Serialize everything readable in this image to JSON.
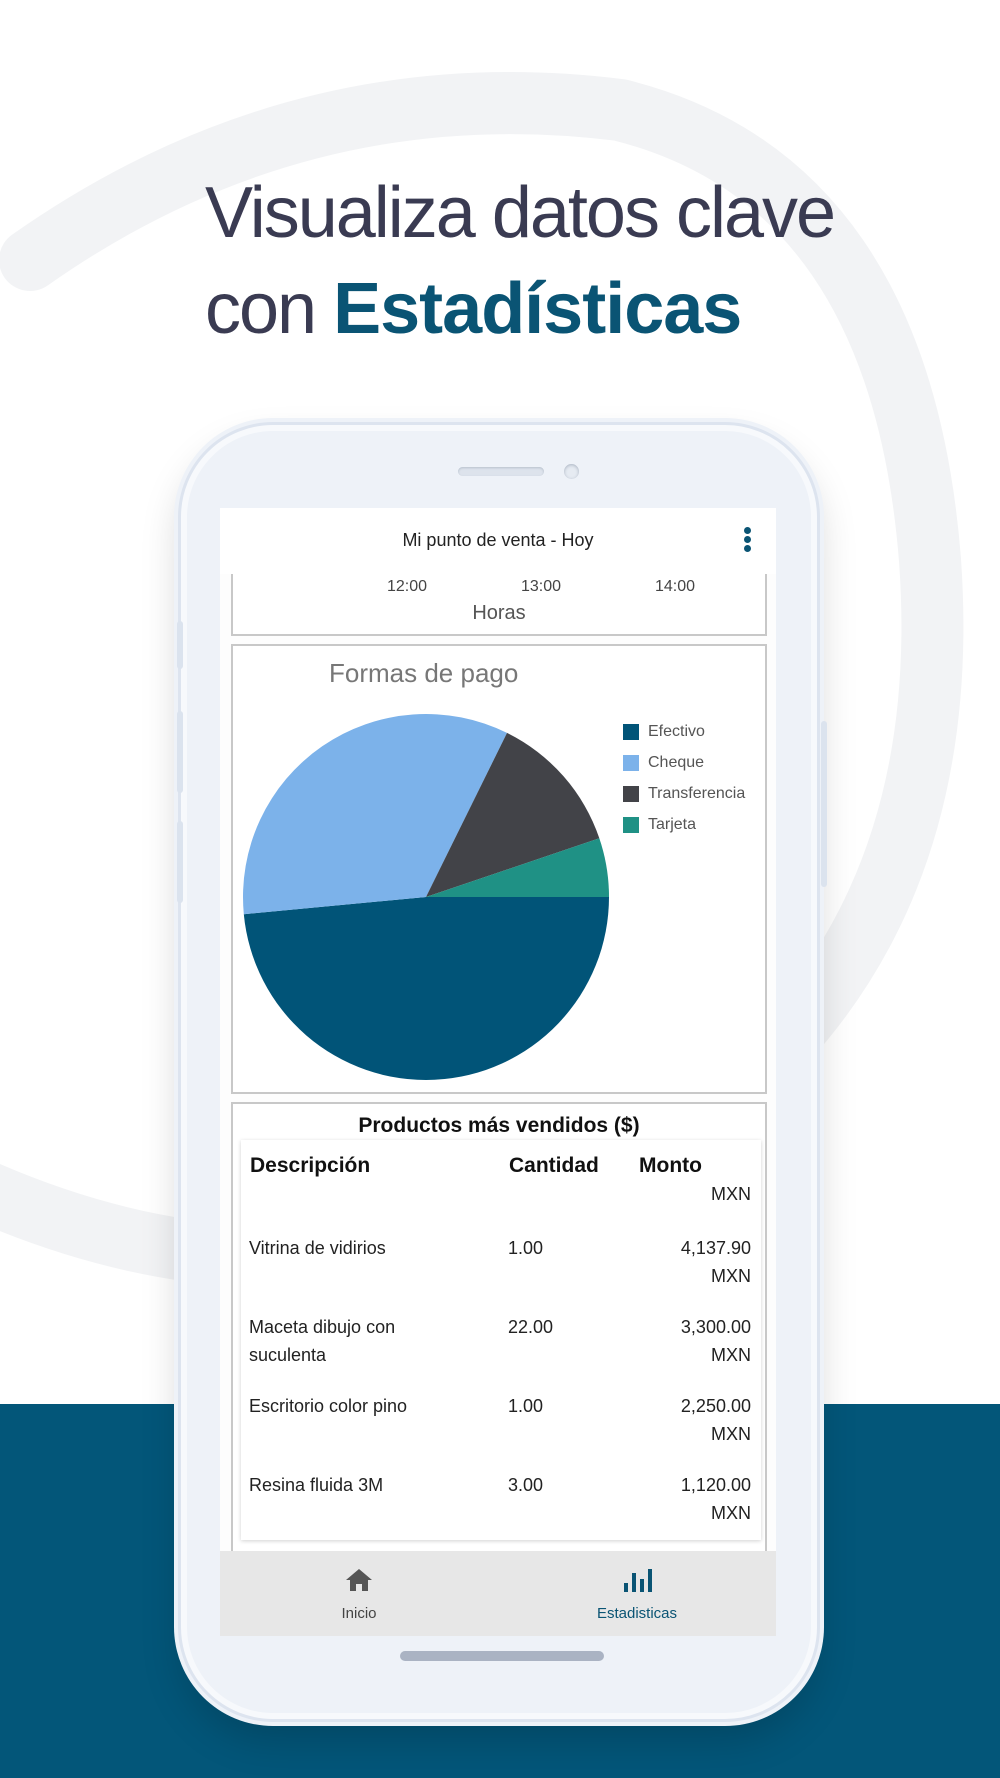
{
  "headline": {
    "line1": "Visualiza datos clave",
    "line2_prefix": "con",
    "line2_accent": "Estadísticas"
  },
  "colors": {
    "brand_dark": "#035679",
    "accent_text": "#0a5474",
    "efectivo": "#015478",
    "cheque": "#7cb2ea",
    "transferencia": "#424348",
    "tarjeta": "#1f9185"
  },
  "app": {
    "title": "Mi punto de venta - Hoy",
    "menu_icon": "more-vert-icon"
  },
  "hours_chart": {
    "ticks": [
      "12:00",
      "13:00",
      "14:00"
    ],
    "axis_title": "Horas"
  },
  "chart_data": {
    "type": "pie",
    "title": "Formas de pago",
    "legend_position": "right",
    "slices": [
      {
        "label": "Efectivo",
        "value": 48.5
      },
      {
        "label": "Cheque",
        "value": 33.8
      },
      {
        "label": "Transferencia",
        "value": 12.5
      },
      {
        "label": "Tarjeta",
        "value": 5.2
      }
    ]
  },
  "top_products": {
    "title": "Productos más vendidos ($)",
    "headers": {
      "description": "Descripción",
      "quantity": "Cantidad",
      "amount": "Monto",
      "currency": "MXN"
    },
    "rows": [
      {
        "description": "Vitrina de vidirios",
        "quantity": "1.00",
        "amount": "4,137.90",
        "currency": "MXN"
      },
      {
        "description": "Maceta dibujo con suculenta",
        "quantity": "22.00",
        "amount": "3,300.00",
        "currency": "MXN"
      },
      {
        "description": "Escritorio color pino",
        "quantity": "1.00",
        "amount": "2,250.00",
        "currency": "MXN"
      },
      {
        "description": "Resina fluida 3M",
        "quantity": "3.00",
        "amount": "1,120.00",
        "currency": "MXN"
      }
    ]
  },
  "bottom_nav": {
    "items": [
      {
        "label": "Inicio",
        "icon": "home-icon",
        "active": false
      },
      {
        "label": "Estadisticas",
        "icon": "bar-chart-icon",
        "active": true
      }
    ]
  }
}
